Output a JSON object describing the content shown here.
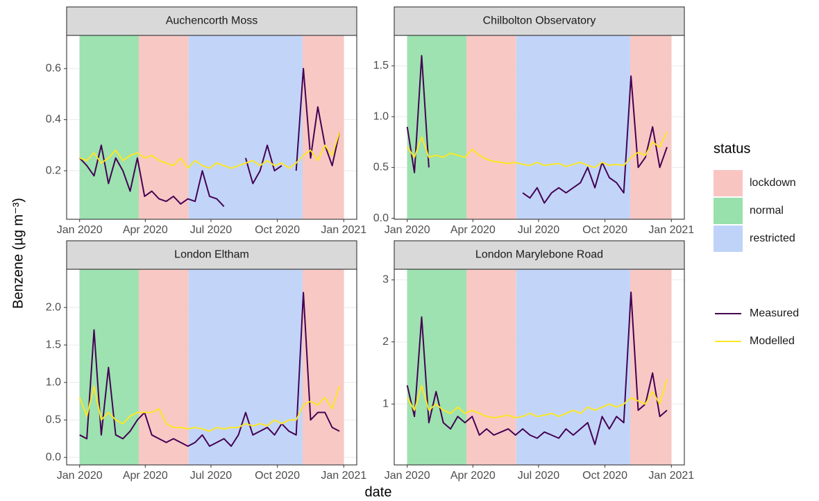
{
  "chart_data": {
    "type": "facet-line",
    "xlabel": "date",
    "ylabel": "Benzene (µg m⁻³)",
    "xlim": [
      -18,
      384
    ],
    "xticks": [
      {
        "value": 0,
        "label": "Jan 2020"
      },
      {
        "value": 91,
        "label": "Apr 2020"
      },
      {
        "value": 182,
        "label": "Jul 2020"
      },
      {
        "value": 274,
        "label": "Oct 2020"
      },
      {
        "value": 366,
        "label": "Jan 2021"
      }
    ],
    "grid": true,
    "x": [
      0,
      10,
      20,
      30,
      40,
      50,
      60,
      70,
      80,
      90,
      100,
      110,
      120,
      130,
      140,
      150,
      160,
      170,
      180,
      190,
      200,
      210,
      220,
      230,
      240,
      250,
      260,
      270,
      280,
      290,
      300,
      310,
      320,
      330,
      340,
      350,
      360
    ],
    "status_legend": {
      "title": "status",
      "items": [
        {
          "name": "lockdown",
          "color": "#f8c5c1"
        },
        {
          "name": "normal",
          "color": "#98e0ac"
        },
        {
          "name": "restricted",
          "color": "#bfd3f8"
        }
      ]
    },
    "periods": [
      {
        "start": 0,
        "end": 82,
        "color": "#98e0ac"
      },
      {
        "start": 82,
        "end": 151,
        "color": "#f8c5c1"
      },
      {
        "start": 151,
        "end": 309,
        "color": "#bfd3f8"
      },
      {
        "start": 309,
        "end": 366,
        "color": "#f8c5c1"
      }
    ],
    "panels": [
      {
        "title": "Auchencorth Moss",
        "ylim": [
          0.01,
          0.73
        ],
        "yticks": [
          0.2,
          0.4,
          0.6
        ],
        "series": [
          {
            "name": "Measured",
            "color": "#440154",
            "values": [
              0.25,
              0.22,
              0.18,
              0.3,
              0.15,
              0.25,
              0.2,
              0.12,
              0.25,
              0.1,
              0.12,
              0.09,
              0.08,
              0.1,
              0.07,
              0.09,
              0.08,
              0.2,
              0.1,
              0.09,
              0.06,
              null,
              null,
              0.25,
              0.15,
              0.2,
              0.3,
              0.2,
              0.22,
              null,
              0.2,
              0.6,
              0.25,
              0.45,
              0.3,
              0.22,
              0.35
            ]
          },
          {
            "name": "Modelled",
            "color": "#fde725",
            "values": [
              0.25,
              0.24,
              0.27,
              0.23,
              0.25,
              0.28,
              0.24,
              0.26,
              0.27,
              0.25,
              0.26,
              0.24,
              0.23,
              0.22,
              0.25,
              0.21,
              0.24,
              0.22,
              0.21,
              0.23,
              0.22,
              0.21,
              0.22,
              0.23,
              0.24,
              0.22,
              0.24,
              0.22,
              0.23,
              0.21,
              0.23,
              0.26,
              0.28,
              0.24,
              0.3,
              0.26,
              0.35
            ]
          }
        ]
      },
      {
        "title": "Chilbolton Observatory",
        "ylim": [
          -0.01,
          1.8
        ],
        "yticks": [
          {
            "value": 0,
            "label": "0.0"
          },
          0.5,
          {
            "value": 1,
            "label": "1.0"
          },
          1.5
        ],
        "series": [
          {
            "name": "Measured",
            "color": "#440154",
            "values": [
              0.9,
              0.45,
              1.6,
              0.5,
              null,
              null,
              null,
              null,
              null,
              null,
              null,
              null,
              null,
              null,
              null,
              null,
              0.25,
              0.2,
              0.3,
              0.15,
              0.25,
              0.3,
              0.25,
              0.3,
              0.35,
              0.5,
              0.3,
              0.55,
              0.4,
              0.35,
              0.25,
              1.4,
              0.5,
              0.6,
              0.9,
              0.5,
              0.7
            ]
          },
          {
            "name": "Modelled",
            "color": "#fde725",
            "values": [
              0.7,
              0.6,
              0.8,
              0.6,
              0.62,
              0.6,
              0.64,
              0.62,
              0.6,
              0.68,
              0.62,
              0.58,
              0.56,
              0.55,
              0.54,
              0.55,
              0.53,
              0.52,
              0.55,
              0.52,
              0.53,
              0.54,
              0.51,
              0.53,
              0.55,
              0.52,
              0.5,
              0.55,
              0.52,
              0.53,
              0.52,
              0.6,
              0.65,
              0.62,
              0.75,
              0.7,
              0.85
            ]
          }
        ]
      },
      {
        "title": "London Eltham",
        "ylim": [
          -0.1,
          2.51
        ],
        "yticks": [
          {
            "value": 0,
            "label": "0.0"
          },
          0.5,
          {
            "value": 1,
            "label": "1.0"
          },
          1.5,
          {
            "value": 2,
            "label": "2.0"
          }
        ],
        "series": [
          {
            "name": "Measured",
            "color": "#440154",
            "values": [
              0.3,
              0.25,
              1.7,
              0.3,
              1.2,
              0.3,
              0.25,
              0.35,
              0.5,
              0.6,
              0.3,
              0.25,
              0.2,
              0.25,
              0.2,
              0.15,
              0.2,
              0.3,
              0.15,
              0.2,
              0.25,
              0.15,
              0.3,
              0.6,
              0.3,
              0.35,
              0.4,
              0.3,
              0.45,
              0.35,
              0.3,
              2.2,
              0.5,
              0.6,
              0.6,
              0.4,
              0.35
            ]
          },
          {
            "name": "Modelled",
            "color": "#fde725",
            "values": [
              0.8,
              0.55,
              0.95,
              0.5,
              0.6,
              0.5,
              0.45,
              0.55,
              0.6,
              0.6,
              0.6,
              0.65,
              0.45,
              0.4,
              0.4,
              0.38,
              0.4,
              0.38,
              0.35,
              0.4,
              0.38,
              0.4,
              0.4,
              0.45,
              0.42,
              0.45,
              0.42,
              0.5,
              0.45,
              0.5,
              0.5,
              0.7,
              0.75,
              0.7,
              0.8,
              0.65,
              0.95
            ]
          }
        ]
      },
      {
        "title": "London Marylebone Road",
        "ylim": [
          0.02,
          3.17
        ],
        "yticks": [
          1,
          2,
          3
        ],
        "series": [
          {
            "name": "Measured",
            "color": "#440154",
            "values": [
              1.3,
              0.8,
              2.4,
              0.7,
              1.2,
              0.7,
              0.6,
              0.8,
              0.7,
              0.8,
              0.5,
              0.6,
              0.5,
              0.55,
              0.6,
              0.5,
              0.6,
              0.5,
              0.45,
              0.55,
              0.5,
              0.45,
              0.6,
              0.5,
              0.6,
              0.7,
              0.35,
              0.8,
              0.6,
              0.8,
              0.7,
              2.8,
              0.9,
              1.0,
              1.5,
              0.8,
              0.9
            ]
          },
          {
            "name": "Modelled",
            "color": "#fde725",
            "values": [
              1.1,
              0.9,
              1.3,
              0.9,
              1.0,
              0.9,
              0.85,
              0.95,
              0.85,
              0.9,
              0.85,
              0.8,
              0.78,
              0.8,
              0.82,
              0.78,
              0.8,
              0.85,
              0.8,
              0.82,
              0.85,
              0.8,
              0.85,
              0.9,
              0.85,
              0.95,
              0.9,
              0.95,
              1.0,
              0.95,
              1.0,
              1.1,
              1.05,
              1.0,
              1.2,
              1.0,
              1.4
            ]
          }
        ]
      }
    ]
  }
}
